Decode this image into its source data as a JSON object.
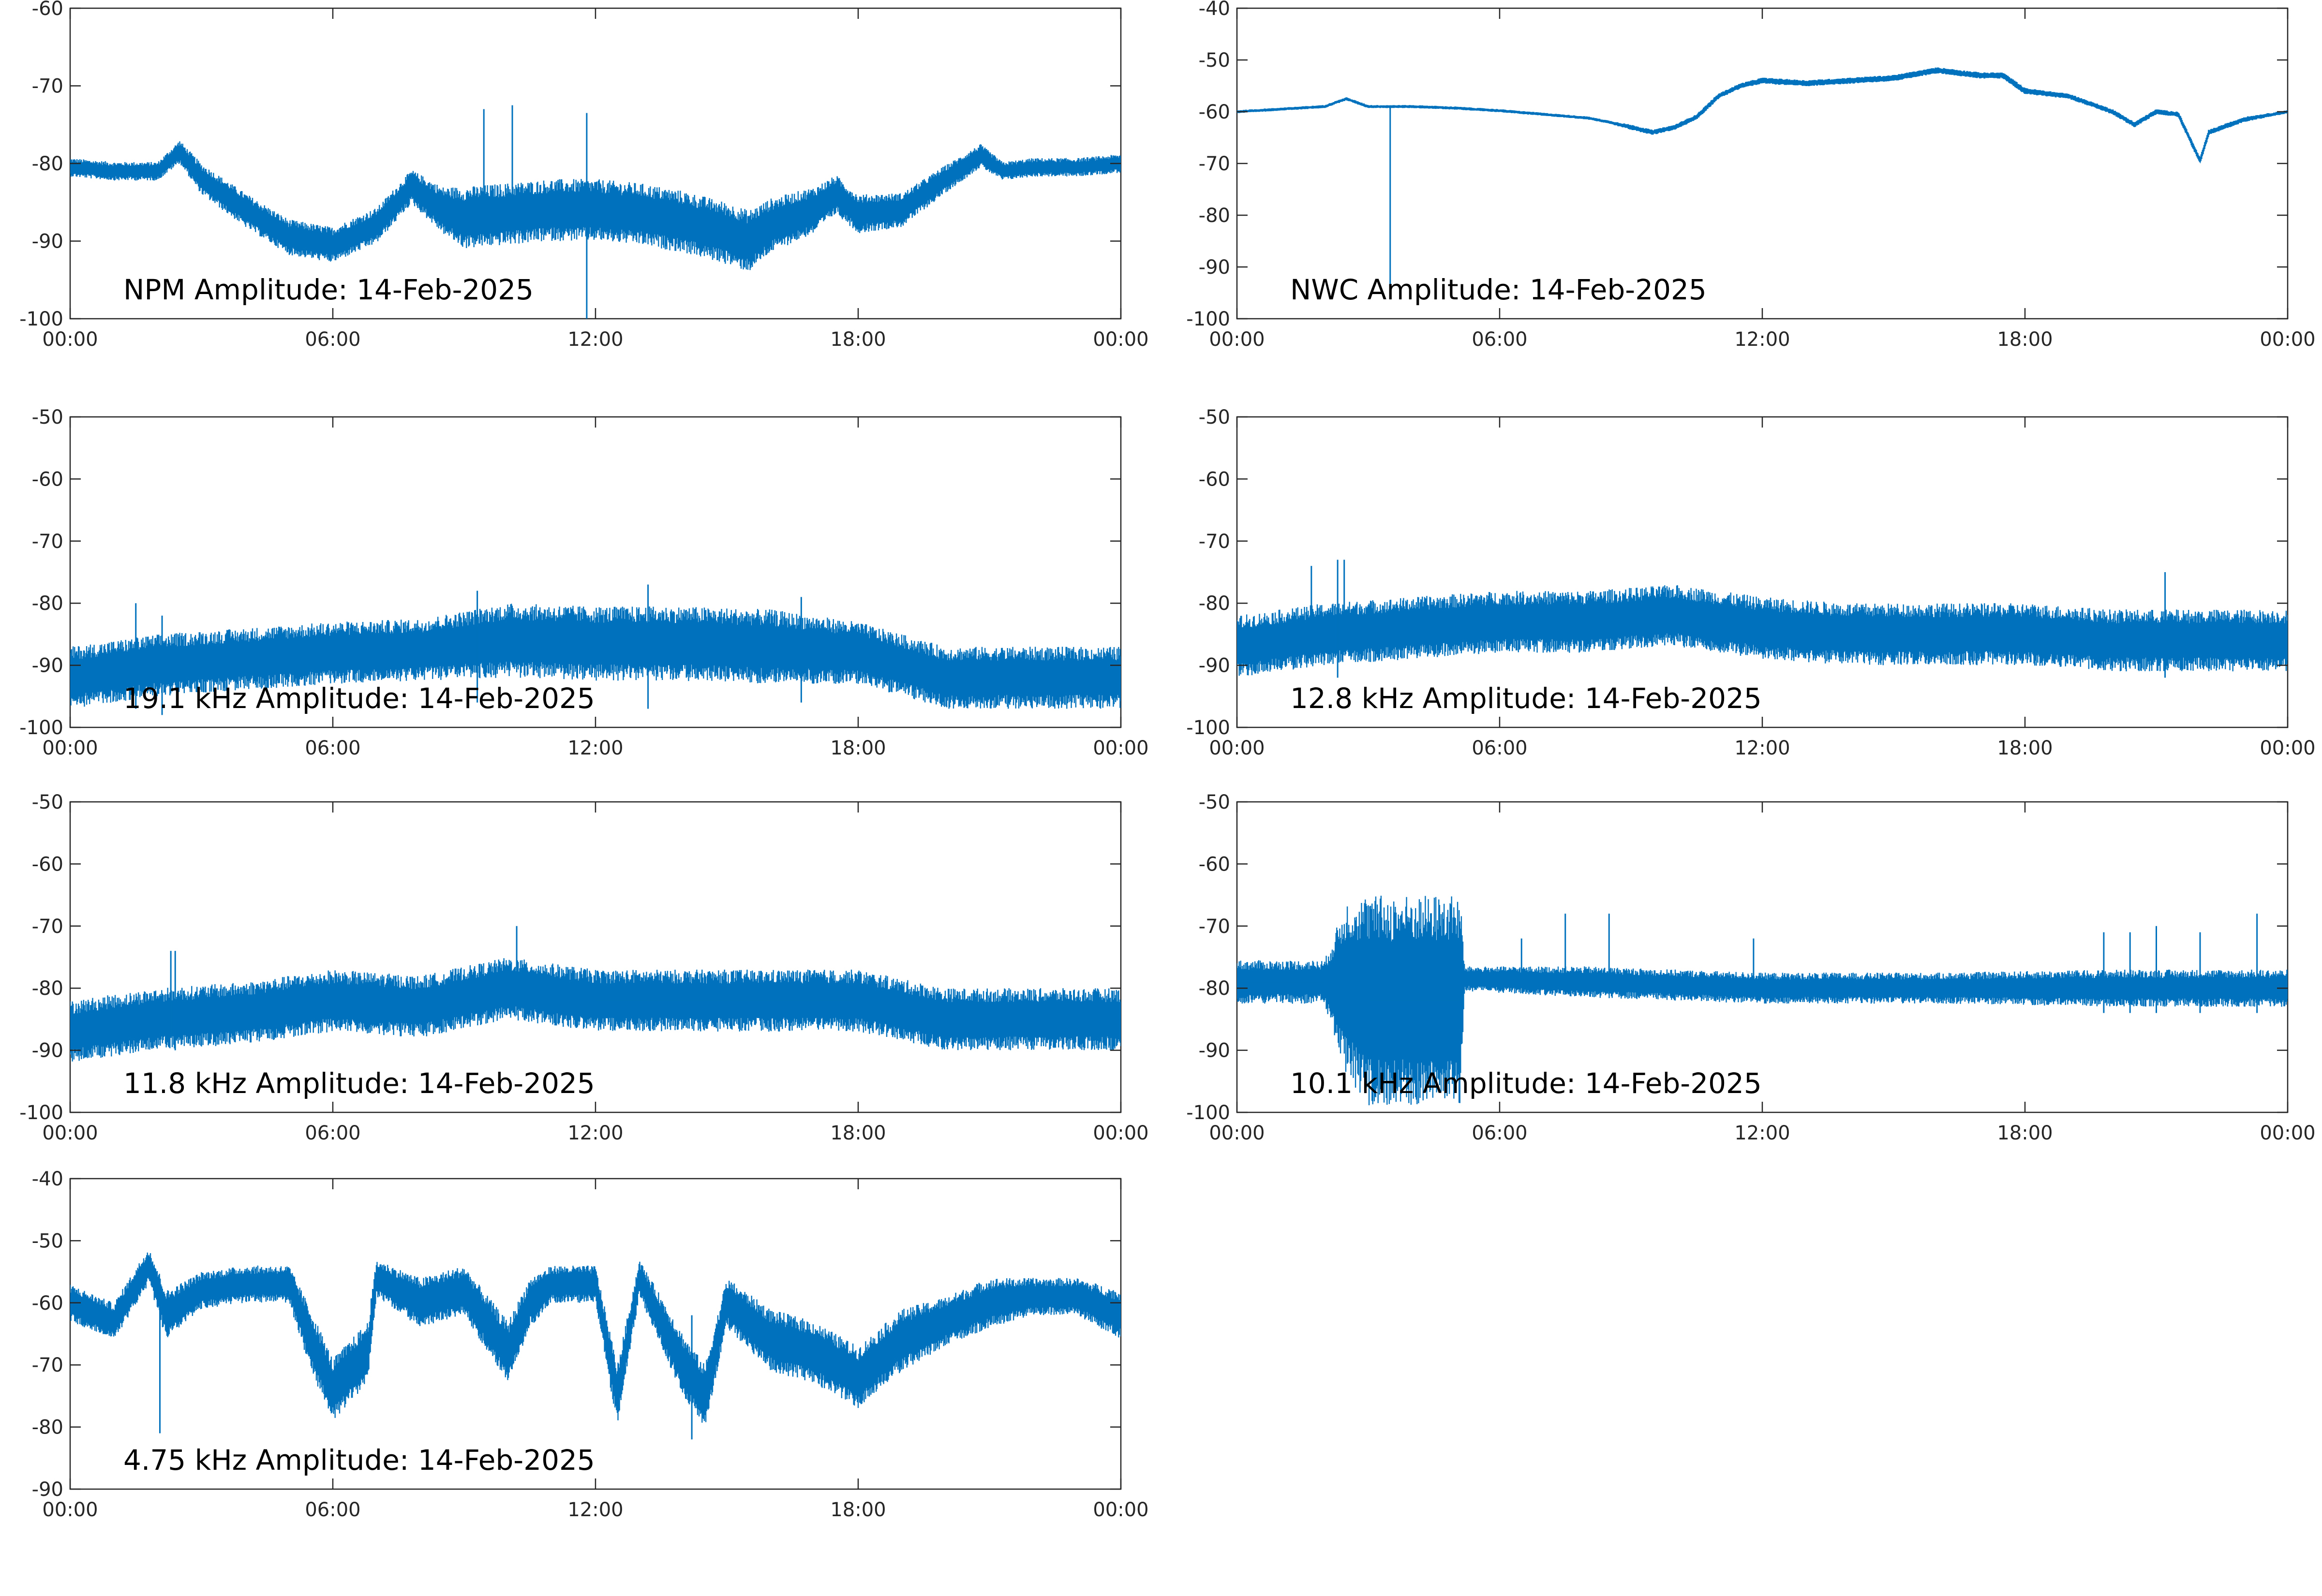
{
  "figure": {
    "series_color": "#0072BD",
    "axis_color": "#262626"
  },
  "chart_data": [
    {
      "type": "line",
      "id": "npm",
      "title": "NPM Amplitude: 14-Feb-2025",
      "xlabel": "",
      "ylabel": "",
      "xlim": [
        "00:00",
        "24:00"
      ],
      "xticks": [
        "00:00",
        "06:00",
        "12:00",
        "18:00",
        "00:00"
      ],
      "ylim": [
        -100,
        -60
      ],
      "yticks": [
        "-100",
        "-90",
        "-80",
        "-70",
        "-60"
      ],
      "grid": false,
      "x_hours": [
        0,
        1,
        2,
        2.5,
        3,
        4,
        5,
        6,
        7,
        7.8,
        8.5,
        9,
        10,
        11,
        12,
        13,
        14,
        15,
        15.5,
        16,
        17,
        17.5,
        18,
        19,
        20,
        20.8,
        21.3,
        22,
        23,
        24
      ],
      "y_center": [
        -80.5,
        -81,
        -81,
        -78.5,
        -82,
        -86,
        -89.5,
        -90.5,
        -88,
        -83,
        -86,
        -87,
        -86.5,
        -86,
        -86,
        -86.5,
        -87.5,
        -89,
        -90,
        -88,
        -86,
        -84,
        -86.5,
        -86,
        -82,
        -79,
        -81,
        -80.5,
        -80.5,
        -80
      ],
      "y_spread": [
        1.2,
        1.2,
        1.2,
        1.5,
        2,
        2.2,
        2.3,
        2.3,
        2.3,
        2.2,
        3,
        4,
        4,
        4,
        4,
        4,
        4,
        4,
        4,
        3.5,
        3,
        2.5,
        2.5,
        2.2,
        1.8,
        1.5,
        1.2,
        1.2,
        1.2,
        1.2
      ],
      "spikes": [
        [
          9.45,
          -73,
          -88
        ],
        [
          10.1,
          -72.5,
          -88
        ],
        [
          11.8,
          -73.5,
          -100
        ]
      ]
    },
    {
      "type": "line",
      "id": "nwc",
      "title": "NWC Amplitude: 14-Feb-2025",
      "xlabel": "",
      "ylabel": "",
      "xlim": [
        "00:00",
        "24:00"
      ],
      "xticks": [
        "00:00",
        "06:00",
        "12:00",
        "18:00",
        "00:00"
      ],
      "ylim": [
        -100,
        -40
      ],
      "yticks": [
        "-100",
        "-90",
        "-80",
        "-70",
        "-60",
        "-50",
        "-40"
      ],
      "grid": false,
      "x_hours": [
        0,
        1,
        2,
        2.5,
        3,
        4,
        5,
        6,
        7,
        8,
        8.5,
        9,
        9.5,
        10,
        10.5,
        11,
        11.5,
        12,
        13,
        14,
        15,
        16,
        17,
        17.5,
        18,
        19,
        20,
        20.5,
        21,
        21.5,
        22,
        22.2,
        23,
        24
      ],
      "y_center": [
        -60,
        -59.5,
        -59,
        -57.5,
        -59,
        -59,
        -59.3,
        -59.8,
        -60.5,
        -61.2,
        -62,
        -63,
        -64,
        -63,
        -61,
        -57,
        -55,
        -54,
        -54.5,
        -54,
        -53.5,
        -52,
        -53,
        -53,
        -56,
        -57,
        -60,
        -62.5,
        -60,
        -60.5,
        -69.5,
        -64,
        -61.5,
        -60
      ],
      "y_spread": [
        0.3,
        0.3,
        0.3,
        0.3,
        0.3,
        0.3,
        0.3,
        0.3,
        0.3,
        0.3,
        0.3,
        0.5,
        0.5,
        0.5,
        0.5,
        0.5,
        0.5,
        0.6,
        0.6,
        0.6,
        0.6,
        0.6,
        0.6,
        0.6,
        0.6,
        0.5,
        0.5,
        0.5,
        0.5,
        0.5,
        0.5,
        0.5,
        0.5,
        0.3
      ],
      "spikes": [
        [
          3.5,
          -59,
          -95
        ]
      ]
    },
    {
      "type": "line",
      "id": "k19_1",
      "title": "19.1 kHz Amplitude: 14-Feb-2025",
      "xlabel": "",
      "ylabel": "",
      "xlim": [
        "00:00",
        "24:00"
      ],
      "xticks": [
        "00:00",
        "06:00",
        "12:00",
        "18:00",
        "00:00"
      ],
      "ylim": [
        -100,
        -50
      ],
      "yticks": [
        "-100",
        "-90",
        "-80",
        "-70",
        "-60",
        "-50"
      ],
      "grid": false,
      "x_hours": [
        0,
        2,
        4,
        6,
        8,
        10,
        12,
        14,
        16,
        18,
        20,
        22,
        24
      ],
      "y_center": [
        -92,
        -90,
        -89,
        -88,
        -87.5,
        -86,
        -86.5,
        -86.5,
        -87,
        -88,
        -92,
        -92,
        -92
      ],
      "y_spread": [
        5,
        5,
        5,
        5,
        5,
        6,
        6,
        6,
        6,
        5,
        5,
        5,
        5
      ],
      "spikes": [
        [
          1.5,
          -80,
          -97
        ],
        [
          2.1,
          -82,
          -98
        ],
        [
          9.3,
          -78,
          -96
        ],
        [
          13.2,
          -77,
          -97
        ],
        [
          16.7,
          -79,
          -96
        ]
      ]
    },
    {
      "type": "line",
      "id": "k12_8",
      "title": "12.8 kHz Amplitude: 14-Feb-2025",
      "xlabel": "",
      "ylabel": "",
      "xlim": [
        "00:00",
        "24:00"
      ],
      "xticks": [
        "00:00",
        "06:00",
        "12:00",
        "18:00",
        "00:00"
      ],
      "ylim": [
        -100,
        -50
      ],
      "yticks": [
        "-100",
        "-90",
        "-80",
        "-70",
        "-60",
        "-50"
      ],
      "grid": false,
      "x_hours": [
        0,
        2,
        4,
        6,
        8,
        10,
        12,
        14,
        16,
        18,
        20,
        22,
        24
      ],
      "y_center": [
        -87,
        -85,
        -84,
        -83,
        -83,
        -82,
        -84,
        -85,
        -85,
        -85,
        -86,
        -86,
        -86
      ],
      "y_spread": [
        5,
        5,
        5,
        5,
        5,
        5,
        5,
        5,
        5,
        5,
        5,
        5,
        5
      ],
      "spikes": [
        [
          1.7,
          -74,
          -88
        ],
        [
          2.3,
          -73,
          -92
        ],
        [
          2.45,
          -73,
          -86
        ],
        [
          21.2,
          -75,
          -92
        ]
      ]
    },
    {
      "type": "line",
      "id": "k11_8",
      "title": "11.8 kHz Amplitude: 14-Feb-2025",
      "xlabel": "",
      "ylabel": "",
      "xlim": [
        "00:00",
        "24:00"
      ],
      "xticks": [
        "00:00",
        "06:00",
        "12:00",
        "18:00",
        "00:00"
      ],
      "ylim": [
        -100,
        -50
      ],
      "yticks": [
        "-100",
        "-90",
        "-80",
        "-70",
        "-60",
        "-50"
      ],
      "grid": false,
      "x_hours": [
        0,
        2,
        4,
        6,
        8,
        10,
        12,
        14,
        16,
        18,
        20,
        22,
        24
      ],
      "y_center": [
        -87,
        -85,
        -84,
        -82,
        -83,
        -80,
        -82,
        -82,
        -82,
        -82,
        -85,
        -85,
        -85
      ],
      "y_spread": [
        5,
        5,
        5,
        5,
        5,
        5,
        5,
        5,
        5,
        5,
        5,
        5,
        5
      ],
      "spikes": [
        [
          2.3,
          -74,
          -88
        ],
        [
          2.4,
          -74,
          -90
        ],
        [
          10.2,
          -70,
          -82
        ]
      ]
    },
    {
      "type": "line",
      "id": "k10_1",
      "title": "10.1 kHz Amplitude: 14-Feb-2025",
      "xlabel": "",
      "ylabel": "",
      "xlim": [
        "00:00",
        "24:00"
      ],
      "xticks": [
        "00:00",
        "06:00",
        "12:00",
        "18:00",
        "00:00"
      ],
      "ylim": [
        -100,
        -50
      ],
      "yticks": [
        "-100",
        "-90",
        "-80",
        "-70",
        "-60",
        "-50"
      ],
      "grid": false,
      "x_hours": [
        0,
        2,
        2.5,
        3,
        4,
        5.1,
        5.2,
        8,
        12,
        16,
        20,
        24
      ],
      "y_center": [
        -79,
        -79,
        -80,
        -82,
        -82,
        -82,
        -78.5,
        -79,
        -80,
        -80,
        -80,
        -80
      ],
      "y_spread": [
        3.5,
        3.5,
        14,
        17,
        17,
        17,
        2,
        2.5,
        2.5,
        2.5,
        3,
        3
      ],
      "spikes": [
        [
          6.5,
          -72,
          -80
        ],
        [
          7.5,
          -68,
          -81
        ],
        [
          8.5,
          -68,
          -81
        ],
        [
          11.8,
          -72,
          -80
        ],
        [
          19.8,
          -71,
          -84
        ],
        [
          20.4,
          -71,
          -84
        ],
        [
          21,
          -70,
          -84
        ],
        [
          22,
          -71,
          -84
        ],
        [
          23.3,
          -68,
          -84
        ]
      ]
    },
    {
      "type": "line",
      "id": "k4_75",
      "title": "4.75 kHz Amplitude: 14-Feb-2025",
      "xlabel": "",
      "ylabel": "",
      "xlim": [
        "00:00",
        "24:00"
      ],
      "xticks": [
        "00:00",
        "06:00",
        "12:00",
        "18:00",
        "00:00"
      ],
      "ylim": [
        -90,
        -40
      ],
      "yticks": [
        "-90",
        "-80",
        "-70",
        "-60",
        "-50",
        "-40"
      ],
      "grid": false,
      "x_hours": [
        0,
        1,
        1.8,
        2.2,
        3,
        4,
        5,
        5.5,
        6,
        6.8,
        7,
        8,
        9,
        10,
        10.5,
        11,
        12,
        12.5,
        13,
        14,
        14.5,
        15,
        16,
        17,
        18,
        19,
        20,
        21,
        22,
        23,
        24
      ],
      "y_center": [
        -60,
        -63,
        -54,
        -62,
        -58,
        -57,
        -57,
        -66,
        -74,
        -68,
        -56,
        -60,
        -58,
        -68,
        -60,
        -57,
        -57,
        -75,
        -56,
        -70,
        -75,
        -60,
        -66,
        -68,
        -72,
        -66,
        -63,
        -60,
        -59,
        -59,
        -62
      ],
      "y_spread": [
        3,
        3,
        3,
        4,
        3,
        3,
        3,
        5,
        5,
        5,
        3,
        4,
        4,
        5,
        4,
        3,
        3,
        5,
        3,
        5,
        5,
        4,
        5,
        5,
        5,
        5,
        4,
        4,
        3,
        3,
        4
      ],
      "spikes": [
        [
          2.05,
          -60,
          -81
        ],
        [
          14.2,
          -62,
          -82
        ]
      ]
    }
  ]
}
